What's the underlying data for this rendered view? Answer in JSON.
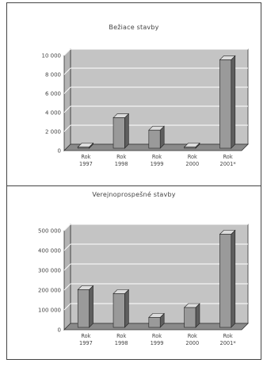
{
  "chart_data": [
    {
      "type": "bar",
      "title": "Bežiace stavby",
      "categories": [
        [
          "Rok",
          "1997"
        ],
        [
          "Rok",
          "1998"
        ],
        [
          "Rok",
          "1999"
        ],
        [
          "Rok",
          "2000"
        ],
        [
          "Rok",
          "2001*"
        ]
      ],
      "values": [
        0,
        3200,
        1900,
        0,
        9300
      ],
      "ylim": [
        0,
        10000
      ],
      "yticks": [
        0,
        2000,
        4000,
        6000,
        8000,
        10000
      ],
      "ytick_labels": [
        "0",
        "2 000",
        "4 000",
        "6 000",
        "8 000",
        "10 000"
      ],
      "grid": true,
      "style": "3d"
    },
    {
      "type": "bar",
      "title": "Verejnoprospešné stavby",
      "categories": [
        [
          "Rok",
          "1997"
        ],
        [
          "Rok",
          "1998"
        ],
        [
          "Rok",
          "1999"
        ],
        [
          "Rok",
          "2000"
        ],
        [
          "Rok",
          "2001*"
        ]
      ],
      "values": [
        190000,
        170000,
        50000,
        100000,
        470000
      ],
      "ylim": [
        0,
        500000
      ],
      "yticks": [
        0,
        100000,
        200000,
        300000,
        400000,
        500000
      ],
      "ytick_labels": [
        "0",
        "100 000",
        "200 000",
        "300 000",
        "400 000",
        "500 000"
      ],
      "grid": true,
      "style": "3d"
    }
  ],
  "colors": {
    "wall": "#c4c4c4",
    "floor": "#8a8a8a",
    "bar_front": "#9a9a9a",
    "bar_side": "#5e5e5e",
    "bar_top": "#dcdcdc",
    "grid": "#ffffff",
    "text": "#444444"
  }
}
